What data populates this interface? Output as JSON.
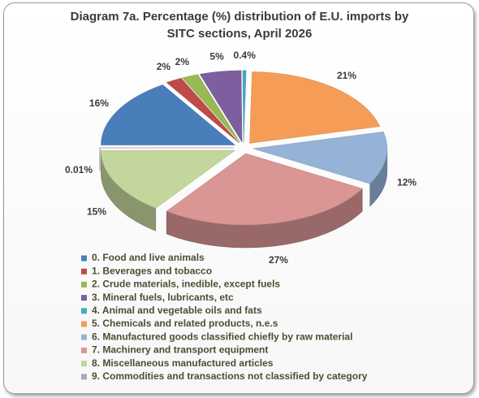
{
  "chart_data": {
    "type": "pie",
    "title": "Diagram 7a. Percentage (%) distribution of  E.U. imports by SITC sections, April 2026",
    "categories": [
      "0. Food and live animals",
      "1. Beverages and tobacco",
      "2. Crude materials, inedible, except fuels",
      "3. Mineral fuels, lubricants, etc",
      "4. Animal and vegetable oils and fats",
      "5. Chemicals and related products, n.e.s",
      "6. Manufactured goods classified chiefly by raw material",
      "7. Machinery and transport equipment",
      "8. Miscellaneous manufactured articles",
      "9. Commodities and transactions not classified by category"
    ],
    "values": [
      16,
      2,
      2,
      5,
      0.4,
      21,
      12,
      27,
      15,
      0.01
    ],
    "value_labels": [
      "16%",
      "2%",
      "2%",
      "5%",
      "0.4%",
      "21%",
      "12%",
      "27%",
      "15%",
      "0.01%"
    ],
    "colors": [
      "#4a7ebb",
      "#be4b48",
      "#98b954",
      "#7d5fa0",
      "#46aac5",
      "#f59d56",
      "#95b3d7",
      "#d99694",
      "#c3d69b",
      "#b3a2c7"
    ],
    "legend": "bottom"
  }
}
